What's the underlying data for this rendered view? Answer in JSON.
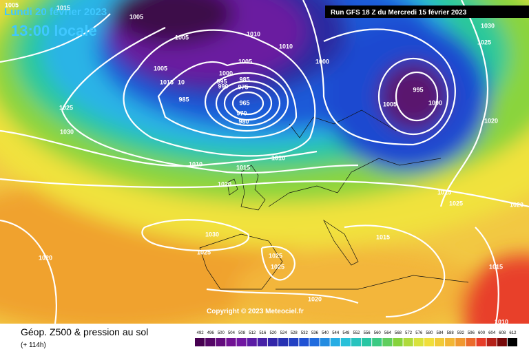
{
  "header": {
    "date": "Lundi 20 février 2023",
    "time": "13:00 locale",
    "run": "Run GFS 18 Z du Mercredi 15 février 2023"
  },
  "footer": {
    "title": "Géop. Z500 & pression au sol",
    "lead": "(+ 114h)",
    "copyright": "Copyright © 2023 Meteociel.fr"
  },
  "legend": {
    "values": [
      492,
      496,
      500,
      504,
      508,
      512,
      516,
      520,
      524,
      528,
      532,
      536,
      540,
      544,
      548,
      552,
      556,
      560,
      564,
      568,
      572,
      576,
      580,
      584,
      588,
      592,
      596,
      600,
      604,
      608,
      612
    ]
  },
  "isobar_labels": [
    "1005",
    "1015",
    "1005",
    "1005",
    "1010",
    "1010",
    "1005",
    "1000",
    "1030",
    "1025",
    "1005",
    "1000",
    "995",
    "985",
    "975",
    "990",
    "1015",
    "10",
    "985",
    "965",
    "970",
    "980",
    "995",
    "1005",
    "1000",
    "1025",
    "1030",
    "1020",
    "1010",
    "1010",
    "1015",
    "1020",
    "1015",
    "1025",
    "1020",
    "1030",
    "1015",
    "1025",
    "1025",
    "1025",
    "1015",
    "1020",
    "1020",
    "1010"
  ]
}
